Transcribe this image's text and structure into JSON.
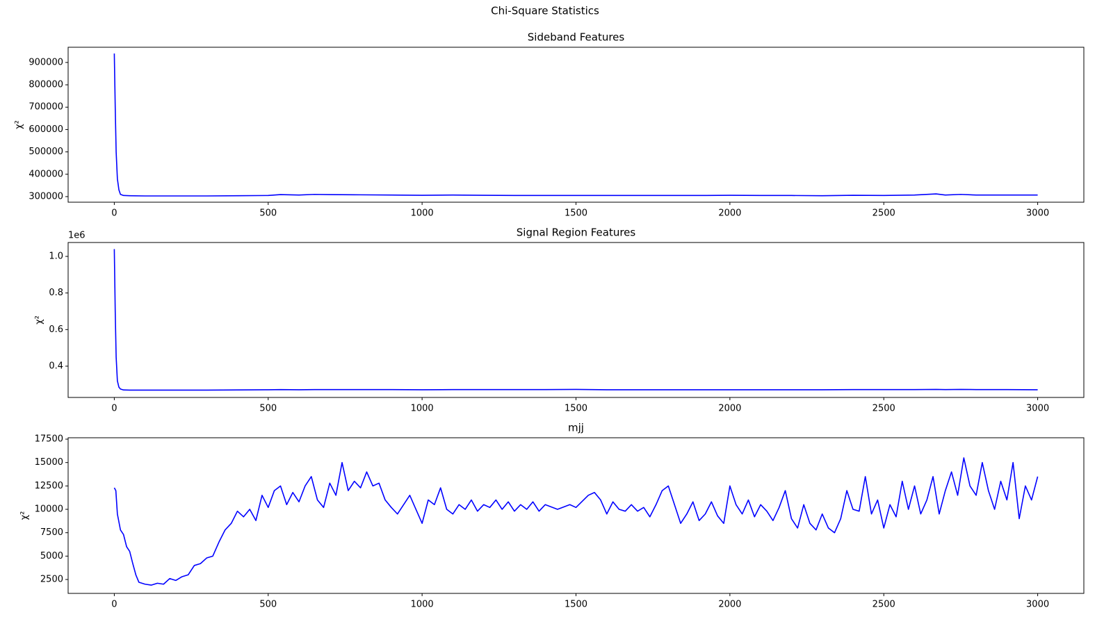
{
  "title": "Chi-Square Statistics",
  "chart_data": [
    {
      "type": "line",
      "title": "Sideband Features",
      "ylabel": "χ²",
      "x": [
        0,
        3,
        6,
        10,
        15,
        20,
        30,
        50,
        100,
        200,
        300,
        400,
        500,
        540,
        600,
        650,
        700,
        800,
        900,
        1000,
        1100,
        1200,
        1300,
        1400,
        1500,
        1600,
        1700,
        1800,
        1900,
        2000,
        2100,
        2200,
        2300,
        2400,
        2500,
        2600,
        2670,
        2700,
        2750,
        2800,
        2900,
        3000
      ],
      "series": [
        {
          "color": "#0000ff",
          "values": [
            940000,
            700000,
            500000,
            380000,
            330000,
            310000,
            305000,
            304000,
            303000,
            303000,
            303000,
            304000,
            305000,
            309000,
            307000,
            310000,
            309000,
            308000,
            307000,
            306000,
            307000,
            306000,
            305000,
            305000,
            305000,
            305000,
            305000,
            305000,
            305000,
            306000,
            305000,
            305000,
            304000,
            306000,
            305000,
            307000,
            312000,
            307000,
            310000,
            307000,
            307000,
            307000
          ]
        }
      ],
      "xlim": [
        -150,
        3150
      ],
      "xticks": [
        0,
        500,
        1000,
        1500,
        2000,
        2500,
        3000
      ],
      "ylim": [
        275000,
        968000
      ],
      "yticks": [
        300000,
        400000,
        500000,
        600000,
        700000,
        800000,
        900000
      ]
    },
    {
      "type": "line",
      "title": "Signal Region Features",
      "ylabel": "χ²",
      "offset_text": "1e6",
      "x": [
        0,
        3,
        6,
        10,
        15,
        20,
        30,
        50,
        100,
        200,
        300,
        400,
        500,
        540,
        600,
        650,
        700,
        800,
        900,
        1000,
        1100,
        1200,
        1300,
        1400,
        1500,
        1600,
        1700,
        1800,
        1900,
        2000,
        2100,
        2200,
        2300,
        2400,
        2500,
        2600,
        2670,
        2700,
        2750,
        2800,
        2900,
        3000
      ],
      "series": [
        {
          "color": "#0000ff",
          "values": [
            1040000,
            700000,
            450000,
            320000,
            285000,
            275000,
            270000,
            269000,
            269000,
            269000,
            269000,
            270000,
            271000,
            272000,
            271000,
            272000,
            272000,
            272000,
            272000,
            271000,
            272000,
            272000,
            272000,
            272000,
            273000,
            271000,
            271000,
            271000,
            271000,
            271000,
            271000,
            271000,
            271000,
            272000,
            272000,
            272000,
            273000,
            272000,
            273000,
            272000,
            272000,
            271000
          ]
        }
      ],
      "xlim": [
        -150,
        3150
      ],
      "xticks": [
        0,
        500,
        1000,
        1500,
        2000,
        2500,
        3000
      ],
      "ylim": [
        229000,
        1076000
      ],
      "yticks": [
        {
          "value": 400000,
          "label": "0.4"
        },
        {
          "value": 600000,
          "label": "0.6"
        },
        {
          "value": 800000,
          "label": "0.8"
        },
        {
          "value": 1000000,
          "label": "1.0"
        }
      ]
    },
    {
      "type": "line",
      "title": "mjj",
      "ylabel": "χ²",
      "x": [
        0,
        5,
        10,
        20,
        30,
        40,
        50,
        60,
        70,
        80,
        100,
        120,
        140,
        160,
        180,
        200,
        220,
        240,
        260,
        280,
        300,
        320,
        340,
        360,
        380,
        400,
        420,
        440,
        460,
        480,
        500,
        520,
        540,
        560,
        580,
        600,
        620,
        640,
        660,
        680,
        700,
        720,
        740,
        760,
        780,
        800,
        820,
        840,
        860,
        880,
        900,
        920,
        940,
        960,
        980,
        1000,
        1020,
        1040,
        1060,
        1080,
        1100,
        1120,
        1140,
        1160,
        1180,
        1200,
        1220,
        1240,
        1260,
        1280,
        1300,
        1320,
        1340,
        1360,
        1380,
        1400,
        1440,
        1480,
        1500,
        1540,
        1560,
        1580,
        1600,
        1620,
        1640,
        1660,
        1680,
        1700,
        1720,
        1740,
        1760,
        1780,
        1800,
        1820,
        1840,
        1860,
        1880,
        1900,
        1920,
        1940,
        1960,
        1980,
        2000,
        2020,
        2040,
        2060,
        2080,
        2100,
        2120,
        2140,
        2160,
        2180,
        2200,
        2220,
        2240,
        2260,
        2280,
        2300,
        2320,
        2340,
        2360,
        2380,
        2400,
        2420,
        2440,
        2460,
        2480,
        2500,
        2520,
        2540,
        2560,
        2580,
        2600,
        2620,
        2640,
        2660,
        2680,
        2700,
        2720,
        2740,
        2760,
        2780,
        2800,
        2820,
        2840,
        2860,
        2880,
        2900,
        2920,
        2940,
        2960,
        2980,
        3000
      ],
      "series": [
        {
          "color": "#0000ff",
          "values": [
            12300,
            12000,
            9500,
            7800,
            7300,
            6000,
            5500,
            4200,
            3000,
            2200,
            2000,
            1900,
            2100,
            2000,
            2600,
            2400,
            2800,
            3000,
            4000,
            4200,
            4800,
            5000,
            6500,
            7800,
            8500,
            9800,
            9200,
            10000,
            8800,
            11500,
            10200,
            12000,
            12500,
            10500,
            11800,
            10800,
            12500,
            13500,
            11000,
            10200,
            12800,
            11500,
            15000,
            12000,
            13000,
            12300,
            14000,
            12500,
            12800,
            11000,
            10200,
            9500,
            10500,
            11500,
            10000,
            8500,
            11000,
            10500,
            12300,
            10000,
            9500,
            10500,
            10000,
            11000,
            9800,
            10500,
            10200,
            11000,
            10000,
            10800,
            9800,
            10500,
            10000,
            10800,
            9800,
            10500,
            10000,
            10500,
            10200,
            11500,
            11800,
            11000,
            9500,
            10800,
            10000,
            9800,
            10500,
            9800,
            10200,
            9200,
            10500,
            12000,
            12500,
            10500,
            8500,
            9500,
            10800,
            8800,
            9500,
            10800,
            9300,
            8500,
            12500,
            10500,
            9500,
            11000,
            9200,
            10500,
            9800,
            8800,
            10200,
            12000,
            9000,
            8000,
            10500,
            8500,
            7800,
            9500,
            8000,
            7500,
            9000,
            12000,
            10000,
            9800,
            13500,
            9500,
            11000,
            8000,
            10500,
            9200,
            13000,
            10000,
            12500,
            9500,
            11000,
            13500,
            9500,
            12000,
            14000,
            11500,
            15500,
            12500,
            11500,
            15000,
            12000,
            10000,
            13000,
            11000,
            15000,
            9000,
            12500,
            11000,
            13500
          ]
        }
      ],
      "xlim": [
        -150,
        3150
      ],
      "xticks": [
        0,
        500,
        1000,
        1500,
        2000,
        2500,
        3000
      ],
      "ylim": [
        1015,
        17650
      ],
      "yticks": [
        2500,
        5000,
        7500,
        10000,
        12500,
        15000,
        17500
      ]
    }
  ]
}
